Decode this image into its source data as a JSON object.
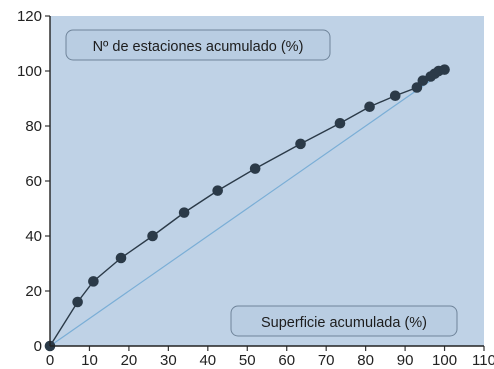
{
  "chart_data": {
    "type": "line",
    "xlabel": "Superficie acumulada (%)",
    "ylabel": "Nº de estaciones acumulado (%)",
    "xlim": [
      0,
      110
    ],
    "ylim": [
      0,
      120
    ],
    "xticks": [
      0,
      10,
      20,
      30,
      40,
      50,
      60,
      70,
      80,
      90,
      100,
      110
    ],
    "yticks": [
      0,
      20,
      40,
      60,
      80,
      100,
      120
    ],
    "grid": false,
    "series": [
      {
        "x": [
          0,
          7,
          11,
          18,
          26,
          34,
          42.5,
          52,
          63.5,
          73.5,
          81,
          87.5,
          93,
          94.5,
          96.5,
          97.5,
          98.5,
          100
        ],
        "y": [
          0,
          16,
          23.5,
          32,
          40,
          48.5,
          56.5,
          64.5,
          73.5,
          81,
          87,
          91,
          94,
          96.5,
          98,
          99,
          100,
          100.5
        ],
        "color": "#2b3a48",
        "marker": "circle"
      },
      {
        "x": [
          0,
          100
        ],
        "y": [
          0,
          100
        ],
        "color": "#7aaed6",
        "marker": "none"
      }
    ],
    "colors": {
      "plot_background": "#bfd2e6",
      "label_box": "#b9cde2",
      "label_border": "#6f849a"
    }
  }
}
